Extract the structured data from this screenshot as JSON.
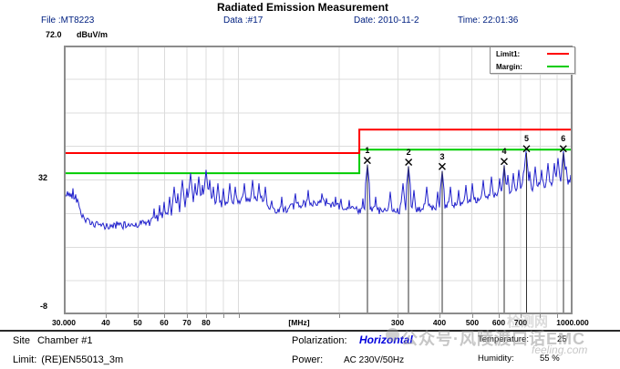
{
  "colors": {
    "header_text": "#002080",
    "polarization_value": "#0000dd",
    "limit_red": "#ff0000",
    "margin_green": "#00cc00",
    "trace_blue": "#2222cc",
    "watermark_gray": "#9a9a9a"
  },
  "header": {
    "file": "File :MT8223",
    "data": "Data :#17",
    "date": "Date: 2010-11-2",
    "time": "Time: 22:01:36"
  },
  "legend": {
    "items": [
      {
        "label": "Limit1:",
        "color": "#ff0000"
      },
      {
        "label": "Margin:",
        "color": "#00cc00"
      }
    ]
  },
  "footer": {
    "site_label": "Site",
    "site_value": "Chamber #1",
    "limit_label": "Limit:",
    "limit_value": "(RE)EN55013_3m",
    "polarization_label": "Polarization:",
    "polarization_value": "Horizontal",
    "power_label": "Power:",
    "power_value": "AC 230V/50Hz",
    "temperature_label": "Temperature:",
    "temperature_value": "25",
    "humidity_label": "Humidity:",
    "humidity_value": "55 %"
  },
  "watermark": {
    "main": "公众号·风陵渡口话EMC",
    "sub": "feeling.com",
    "top": "检测网"
  },
  "chart_data": {
    "type": "line",
    "title": "Radiated Emission Measurement",
    "x_axis": {
      "label": "[MHz]",
      "scale": "log",
      "range": [
        30,
        1000
      ],
      "ticks": [
        {
          "f": 30,
          "label": "30.000"
        },
        {
          "f": 40,
          "label": "40"
        },
        {
          "f": 50,
          "label": "50"
        },
        {
          "f": 60,
          "label": "60"
        },
        {
          "f": 70,
          "label": "70"
        },
        {
          "f": 80,
          "label": "80"
        },
        {
          "f": 152,
          "label": "[MHz]"
        },
        {
          "f": 300,
          "label": "300"
        },
        {
          "f": 400,
          "label": "400"
        },
        {
          "f": 500,
          "label": "500"
        },
        {
          "f": 600,
          "label": "600"
        },
        {
          "f": 700,
          "label": "700"
        },
        {
          "f": 1000,
          "label": "1000.000"
        }
      ],
      "gridlines": [
        40,
        50,
        60,
        70,
        80,
        90,
        100,
        200,
        300,
        400,
        500,
        600,
        700,
        800,
        900
      ]
    },
    "y_axis": {
      "unit": "dBuV/m",
      "range": [
        -8,
        72
      ],
      "top_label": "72.0",
      "mid_label": "32",
      "bottom_label": "-8",
      "gridlines": [
        62,
        52,
        42,
        32,
        22,
        12,
        2
      ]
    },
    "series": [
      {
        "name": "Limit1",
        "color": "#ff0000",
        "points": [
          [
            30,
            40
          ],
          [
            230,
            40
          ],
          [
            230,
            47
          ],
          [
            1000,
            47
          ]
        ]
      },
      {
        "name": "Margin",
        "color": "#00cc00",
        "points": [
          [
            30,
            34
          ],
          [
            230,
            34
          ],
          [
            230,
            41
          ],
          [
            1000,
            41
          ]
        ]
      },
      {
        "name": "Measured",
        "color": "#2222cc",
        "noise_db": 1.1,
        "baseline_keypoints": [
          [
            30,
            28
          ],
          [
            32.5,
            27.3
          ],
          [
            34,
            21.5
          ],
          [
            36,
            18.8
          ],
          [
            40,
            18.2
          ],
          [
            45,
            18.4
          ],
          [
            50,
            18.9
          ],
          [
            55,
            19.6
          ],
          [
            60,
            21
          ],
          [
            66,
            22
          ],
          [
            75,
            23
          ],
          [
            85,
            24.3
          ],
          [
            95,
            25.3
          ],
          [
            105,
            26.3
          ],
          [
            115,
            26.8
          ],
          [
            125,
            24
          ],
          [
            132,
            22.8
          ],
          [
            142,
            23.6
          ],
          [
            155,
            24.8
          ],
          [
            170,
            25.2
          ],
          [
            185,
            24.8
          ],
          [
            200,
            24
          ],
          [
            218,
            23.3
          ],
          [
            245,
            22.9
          ],
          [
            275,
            22.7
          ],
          [
            315,
            23
          ],
          [
            355,
            23.7
          ],
          [
            405,
            24.1
          ],
          [
            455,
            25
          ],
          [
            520,
            26.3
          ],
          [
            600,
            27.6
          ],
          [
            700,
            29
          ],
          [
            800,
            30.2
          ],
          [
            900,
            31
          ],
          [
            1000,
            31.3
          ]
        ],
        "spikes": [
          [
            56,
            23.5
          ],
          [
            58,
            24.5
          ],
          [
            60,
            25.5
          ],
          [
            62,
            27
          ],
          [
            64,
            30
          ],
          [
            66,
            28
          ],
          [
            68,
            32
          ],
          [
            70,
            29.5
          ],
          [
            72,
            34
          ],
          [
            74,
            31
          ],
          [
            76,
            33
          ],
          [
            78,
            30.5
          ],
          [
            80,
            35
          ],
          [
            82,
            32
          ],
          [
            84,
            30
          ],
          [
            87,
            31
          ],
          [
            90,
            29.5
          ],
          [
            94,
            31
          ],
          [
            98,
            30
          ],
          [
            104,
            31
          ],
          [
            110,
            32
          ],
          [
            115,
            31
          ],
          [
            120,
            30
          ],
          [
            135,
            27
          ],
          [
            148,
            28
          ],
          [
            162,
            29
          ],
          [
            178,
            28
          ],
          [
            195,
            27
          ],
          [
            215,
            26
          ],
          [
            235,
            26.5
          ],
          [
            258,
            27
          ],
          [
            285,
            28.5
          ],
          [
            310,
            31
          ],
          [
            335,
            29
          ],
          [
            365,
            30
          ],
          [
            395,
            28.5
          ],
          [
            430,
            30
          ],
          [
            455,
            29
          ],
          [
            478,
            30.5
          ],
          [
            500,
            31
          ],
          [
            540,
            32
          ],
          [
            570,
            33
          ],
          [
            605,
            32.5
          ],
          [
            640,
            33.5
          ],
          [
            665,
            34
          ],
          [
            690,
            35
          ],
          [
            712,
            34
          ],
          [
            745,
            34.5
          ],
          [
            775,
            36
          ],
          [
            810,
            35
          ],
          [
            845,
            37
          ],
          [
            880,
            37
          ],
          [
            905,
            38.5
          ],
          [
            955,
            36
          ],
          [
            985,
            33.5
          ],
          [
            243,
            36.6
          ],
          [
            323,
            36.1
          ],
          [
            407,
            34.7
          ],
          [
            624,
            36.4
          ],
          [
            728,
            40.6
          ],
          [
            938,
            40.6
          ]
        ]
      }
    ],
    "markers": [
      {
        "n": "1",
        "f": 243,
        "db": 37.8
      },
      {
        "n": "2",
        "f": 323,
        "db": 37.3
      },
      {
        "n": "3",
        "f": 407,
        "db": 36.0
      },
      {
        "n": "4",
        "f": 624,
        "db": 37.5
      },
      {
        "n": "5",
        "f": 728,
        "db": 41.3
      },
      {
        "n": "6",
        "f": 938,
        "db": 41.3
      }
    ]
  }
}
